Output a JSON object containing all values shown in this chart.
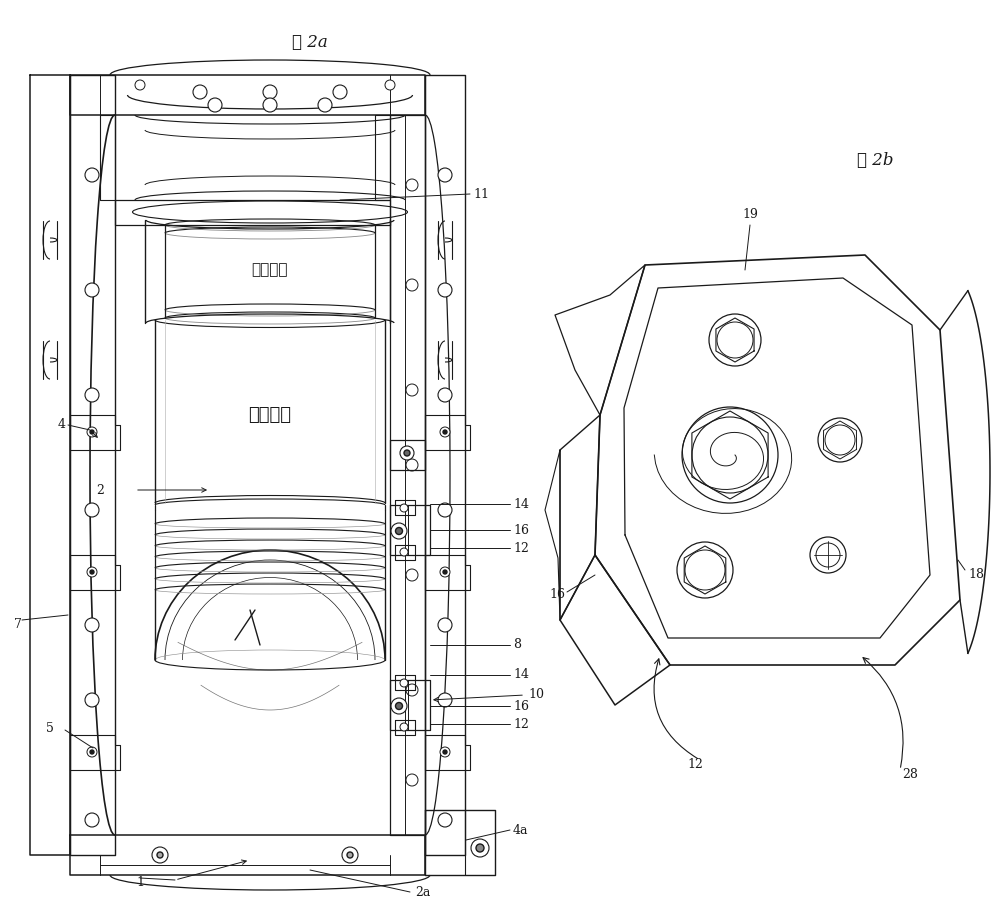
{
  "bg_color": "#ffffff",
  "lc": "#1a1a1a",
  "lw": 1.0,
  "fig_width": 10.0,
  "fig_height": 9.06,
  "fig2a_caption": "图 2a",
  "fig2b_caption": "图 2b",
  "chinese_label": "均一容器"
}
